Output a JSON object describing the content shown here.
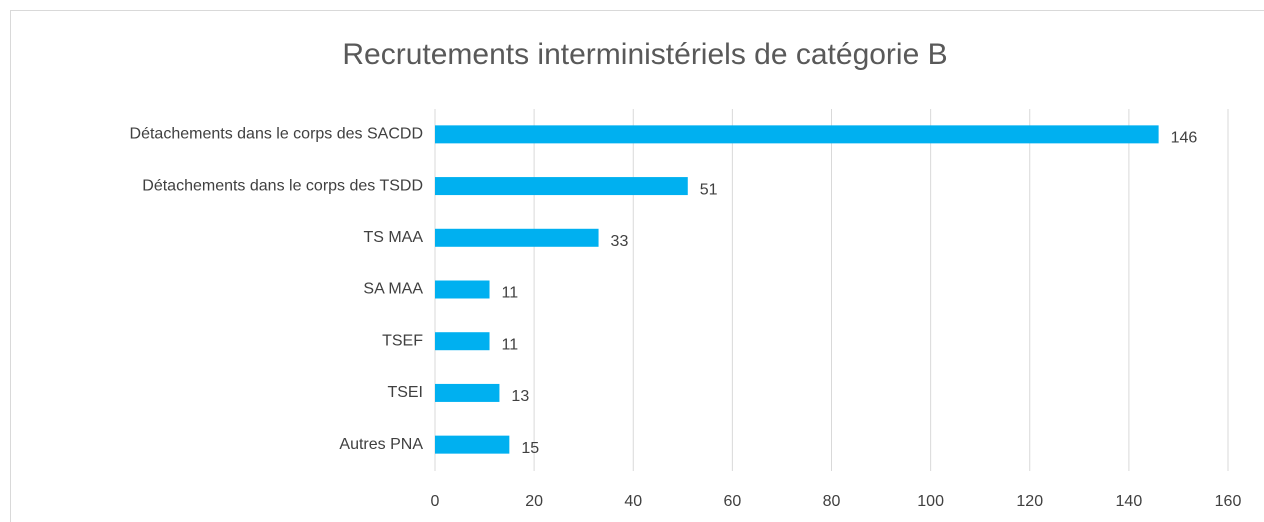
{
  "chart_data": {
    "type": "bar",
    "orientation": "horizontal",
    "title": "Recrutements interministériels de catégorie B",
    "categories": [
      "Détachements dans le corps des SACDD",
      "Détachements dans le corps des TSDD",
      "TS MAA",
      "SA MAA",
      "TSEF",
      "TSEI",
      "Autres PNA"
    ],
    "values": [
      146,
      51,
      33,
      11,
      11,
      13,
      15
    ],
    "color": "#00b0f0",
    "xlim": [
      0,
      160
    ],
    "xticks": [
      0,
      20,
      40,
      60,
      80,
      100,
      120,
      140,
      160
    ],
    "grid": true
  }
}
